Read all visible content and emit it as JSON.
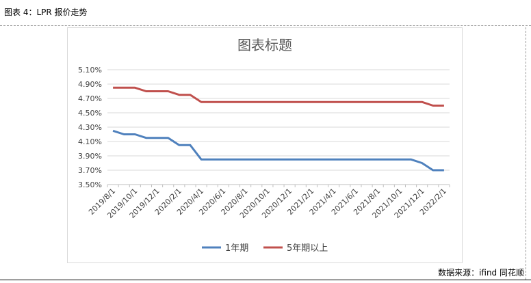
{
  "figure": {
    "caption": "图表 4：LPR 报价走势",
    "source": "数据来源：ifind 同花顺"
  },
  "chart_data": {
    "type": "line",
    "title": "图表标题",
    "xlabel": "",
    "ylabel": "",
    "ylim": [
      3.5,
      5.1
    ],
    "yticks": [
      "5.10%",
      "4.90%",
      "4.70%",
      "4.50%",
      "4.30%",
      "4.10%",
      "3.90%",
      "3.70%",
      "3.50%"
    ],
    "y_tick_values": [
      5.1,
      4.9,
      4.7,
      4.5,
      4.3,
      4.1,
      3.9,
      3.7,
      3.5
    ],
    "xticks": [
      "2019/8/1",
      "2019/10/1",
      "2019/12/1",
      "2020/2/1",
      "2020/4/1",
      "2020/6/1",
      "2020/8/1",
      "2020/10/1",
      "2020/12/1",
      "2021/2/1",
      "2021/4/1",
      "2021/6/1",
      "2021/8/1",
      "2021/10/1",
      "2021/12/1",
      "2022/2/1"
    ],
    "grid": true,
    "legend_position": "bottom",
    "months": [
      "2019/8",
      "2019/9",
      "2019/10",
      "2019/11",
      "2019/12",
      "2020/1",
      "2020/2",
      "2020/3",
      "2020/4",
      "2020/5",
      "2020/6",
      "2020/7",
      "2020/8",
      "2020/9",
      "2020/10",
      "2020/11",
      "2020/12",
      "2021/1",
      "2021/2",
      "2021/3",
      "2021/4",
      "2021/5",
      "2021/6",
      "2021/7",
      "2021/8",
      "2021/9",
      "2021/10",
      "2021/11",
      "2021/12",
      "2022/1",
      "2022/2"
    ],
    "series": [
      {
        "name": "1年期",
        "color": "#4f81bd",
        "values": [
          4.25,
          4.2,
          4.2,
          4.15,
          4.15,
          4.15,
          4.05,
          4.05,
          3.85,
          3.85,
          3.85,
          3.85,
          3.85,
          3.85,
          3.85,
          3.85,
          3.85,
          3.85,
          3.85,
          3.85,
          3.85,
          3.85,
          3.85,
          3.85,
          3.85,
          3.85,
          3.85,
          3.85,
          3.8,
          3.7,
          3.7
        ]
      },
      {
        "name": "5年期以上",
        "color": "#c0504d",
        "values": [
          4.85,
          4.85,
          4.85,
          4.8,
          4.8,
          4.8,
          4.75,
          4.75,
          4.65,
          4.65,
          4.65,
          4.65,
          4.65,
          4.65,
          4.65,
          4.65,
          4.65,
          4.65,
          4.65,
          4.65,
          4.65,
          4.65,
          4.65,
          4.65,
          4.65,
          4.65,
          4.65,
          4.65,
          4.65,
          4.6,
          4.6
        ]
      }
    ]
  }
}
